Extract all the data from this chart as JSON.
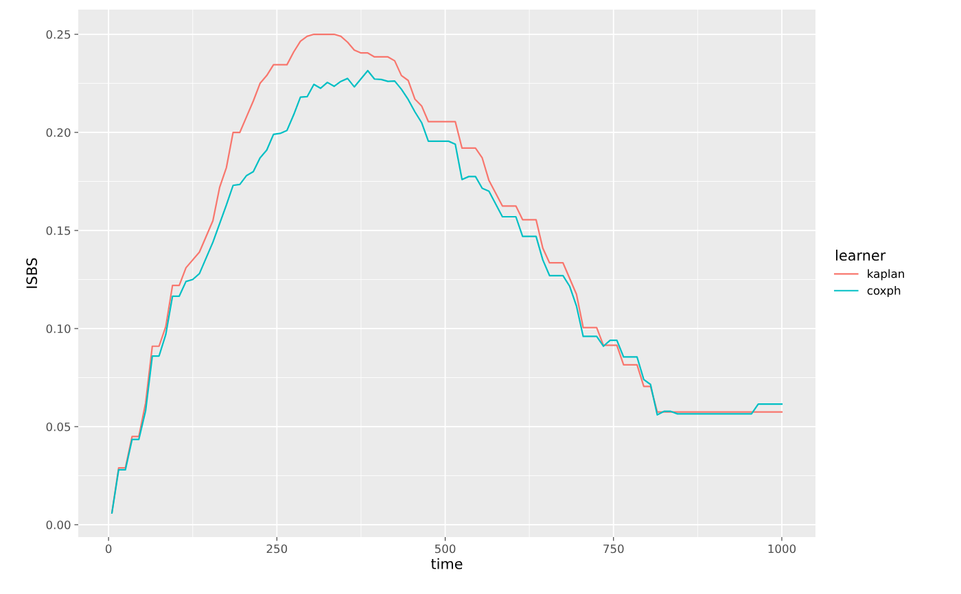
{
  "chart_data": {
    "type": "line",
    "xlabel": "time",
    "ylabel": "ISBS",
    "legend_title": "learner",
    "legend": "right",
    "grid": true,
    "line_style": "solid",
    "xlim": [
      -45,
      1050
    ],
    "xticks": [
      0,
      250,
      500,
      750,
      1000
    ],
    "ylim": [
      -0.0063,
      0.2626
    ],
    "yticks": [
      {
        "value": 0,
        "label": "0.00"
      },
      {
        "value": 0.05,
        "label": "0.05"
      },
      {
        "value": 0.1,
        "label": "0.10"
      },
      {
        "value": 0.15,
        "label": "0.15"
      },
      {
        "value": 0.2,
        "label": "0.20"
      },
      {
        "value": 0.25,
        "label": "0.25"
      }
    ],
    "series": [
      {
        "name": "kaplan",
        "color": "#f8766d",
        "x": [
          5,
          15,
          25,
          35,
          45,
          55,
          65,
          75,
          85,
          95,
          105,
          115,
          135,
          155,
          165,
          175,
          185,
          195,
          205,
          215,
          225,
          235,
          245,
          265,
          275,
          285,
          295,
          305,
          335,
          345,
          355,
          365,
          375,
          385,
          395,
          415,
          425,
          435,
          445,
          455,
          465,
          475,
          515,
          525,
          545,
          555,
          565,
          585,
          605,
          615,
          635,
          645,
          655,
          675,
          695,
          705,
          725,
          735,
          755,
          765,
          785,
          795,
          805,
          815,
          1000
        ],
        "values": [
          0.006,
          0.029,
          0.029,
          0.045,
          0.045,
          0.062,
          0.091,
          0.091,
          0.101,
          0.122,
          0.122,
          0.131,
          0.139,
          0.155,
          0.172,
          0.182,
          0.2,
          0.2,
          0.208,
          0.216,
          0.225,
          0.229,
          0.2345,
          0.2345,
          0.241,
          0.2465,
          0.249,
          0.25,
          0.25,
          0.249,
          0.246,
          0.242,
          0.2405,
          0.2405,
          0.2385,
          0.2385,
          0.2365,
          0.229,
          0.2265,
          0.217,
          0.2135,
          0.2055,
          0.2055,
          0.192,
          0.192,
          0.187,
          0.1755,
          0.1625,
          0.1625,
          0.1555,
          0.1555,
          0.141,
          0.1335,
          0.1335,
          0.1175,
          0.1005,
          0.1005,
          0.0915,
          0.0915,
          0.0815,
          0.0815,
          0.0705,
          0.0705,
          0.0575,
          0.0575
        ]
      },
      {
        "name": "coxph",
        "color": "#00bfc4",
        "x": [
          5,
          15,
          25,
          35,
          45,
          55,
          65,
          75,
          85,
          95,
          105,
          115,
          125,
          135,
          155,
          175,
          185,
          195,
          205,
          215,
          225,
          235,
          245,
          255,
          265,
          275,
          285,
          295,
          305,
          315,
          325,
          335,
          345,
          355,
          365,
          385,
          395,
          405,
          415,
          425,
          435,
          445,
          455,
          465,
          475,
          505,
          515,
          525,
          535,
          545,
          555,
          565,
          585,
          605,
          615,
          635,
          645,
          655,
          675,
          685,
          695,
          705,
          725,
          735,
          745,
          755,
          765,
          785,
          795,
          805,
          815,
          825,
          835,
          845,
          955,
          965,
          1000
        ],
        "values": [
          0.006,
          0.028,
          0.028,
          0.0435,
          0.0435,
          0.058,
          0.086,
          0.086,
          0.097,
          0.1165,
          0.1165,
          0.124,
          0.125,
          0.128,
          0.144,
          0.163,
          0.173,
          0.1735,
          0.178,
          0.18,
          0.187,
          0.191,
          0.199,
          0.1995,
          0.201,
          0.209,
          0.218,
          0.2182,
          0.2245,
          0.2225,
          0.2255,
          0.2235,
          0.226,
          0.2275,
          0.2232,
          0.2315,
          0.2272,
          0.227,
          0.226,
          0.2262,
          0.222,
          0.2168,
          0.2105,
          0.205,
          0.1955,
          0.1955,
          0.194,
          0.176,
          0.1775,
          0.1775,
          0.1715,
          0.17,
          0.157,
          0.157,
          0.147,
          0.147,
          0.135,
          0.127,
          0.127,
          0.1215,
          0.1115,
          0.096,
          0.096,
          0.091,
          0.094,
          0.094,
          0.0855,
          0.0855,
          0.074,
          0.0715,
          0.056,
          0.0578,
          0.0578,
          0.0565,
          0.0565,
          0.0615,
          0.0615
        ]
      }
    ]
  }
}
